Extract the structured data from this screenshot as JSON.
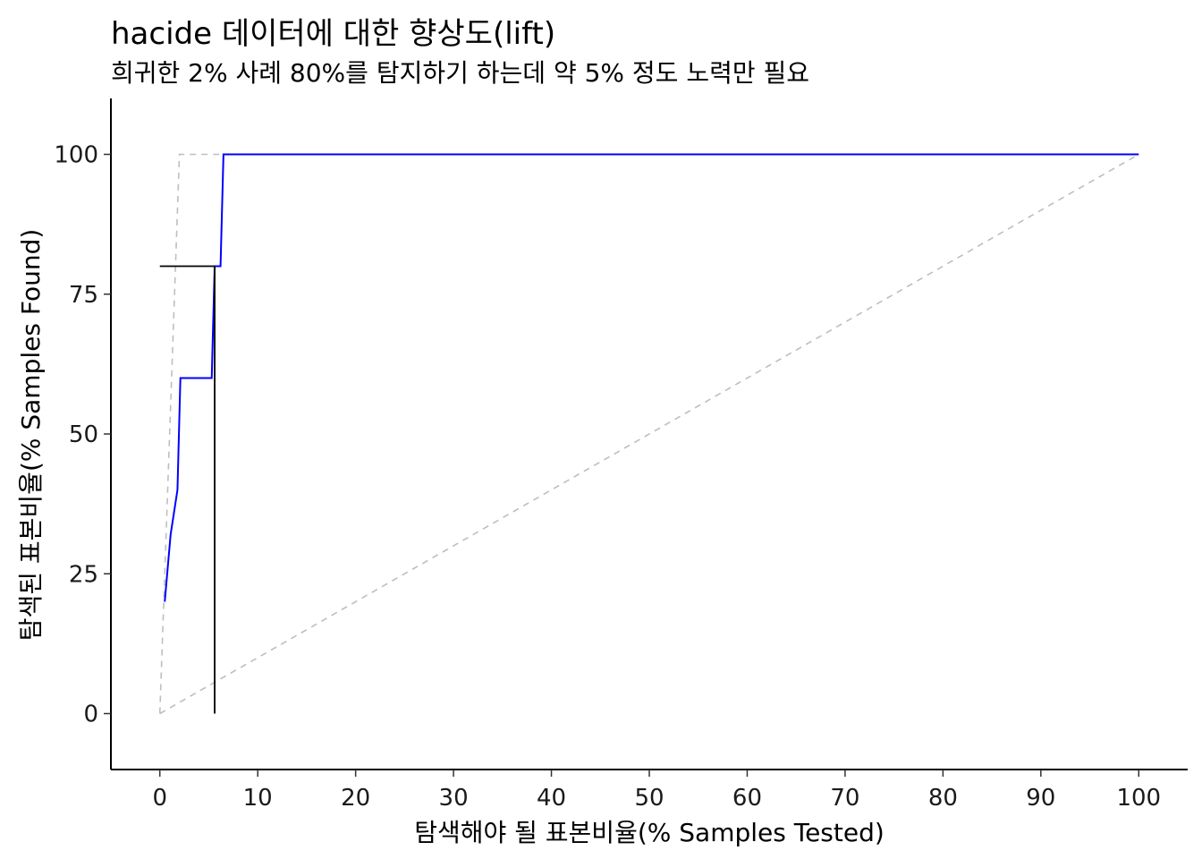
{
  "chart_data": {
    "type": "line",
    "title": "hacide 데이터에 대한 향상도(lift)",
    "subtitle": "희귀한 2% 사례 80%를 탐지하기 하는데 약 5% 정도 노력만 필요",
    "xlabel": "탐색해야 될 표본비율(% Samples Tested)",
    "ylabel": "탐색된 표본비율(% Samples Found)",
    "xlim": [
      -5,
      105
    ],
    "ylim": [
      -10,
      110
    ],
    "x_ticks": [
      0,
      10,
      20,
      30,
      40,
      50,
      60,
      70,
      80,
      90,
      100
    ],
    "y_ticks": [
      0,
      25,
      50,
      75,
      100
    ],
    "grid": false,
    "legend": "none",
    "series": [
      {
        "color": "#0000ff",
        "style": "solid",
        "x": [
          0.5,
          1.1,
          1.8,
          2.1,
          5.3,
          5.6,
          6.2,
          6.5,
          100
        ],
        "y": [
          20,
          32,
          40,
          60,
          60,
          80,
          80,
          100,
          100
        ]
      },
      {
        "color": "#bebebe",
        "style": "dashed",
        "x": [
          0,
          2,
          100
        ],
        "y": [
          0,
          100,
          100
        ]
      },
      {
        "color": "#bebebe",
        "style": "dashed",
        "x": [
          0,
          100
        ],
        "y": [
          0,
          100
        ]
      }
    ],
    "reference_lines": [
      {
        "color": "#000000",
        "x": [
          0,
          5.6
        ],
        "y": [
          80,
          80
        ]
      },
      {
        "color": "#000000",
        "x": [
          5.6,
          5.6
        ],
        "y": [
          0,
          80
        ]
      }
    ]
  }
}
